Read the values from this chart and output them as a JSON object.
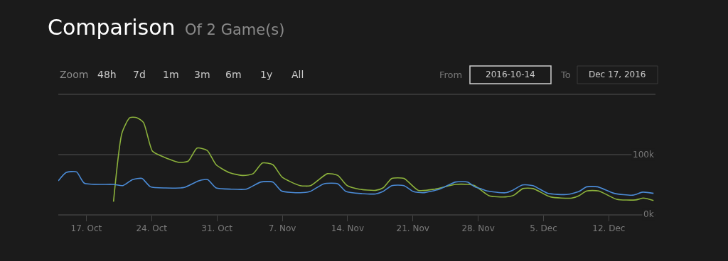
{
  "chart_data": {
    "type": "line",
    "title": "Comparison",
    "subtitle": "Of 2 Game(s)",
    "annotations": [
      "Zoom",
      "48h",
      "7d",
      "1m",
      "3m",
      "6m",
      "1y",
      "All",
      "From",
      "2016-10-14",
      "To",
      "Dec 17, 2016"
    ],
    "xlim": [
      "2016-10-14",
      "2016-12-17"
    ],
    "xticks": [
      {
        "value": "2016-10-17",
        "label": "17. Oct"
      },
      {
        "value": "2016-10-24",
        "label": "24. Oct"
      },
      {
        "value": "2016-10-31",
        "label": "31. Oct"
      },
      {
        "value": "2016-11-07",
        "label": "7. Nov"
      },
      {
        "value": "2016-11-14",
        "label": "14. Nov"
      },
      {
        "value": "2016-11-21",
        "label": "21. Nov"
      },
      {
        "value": "2016-11-28",
        "label": "28. Nov"
      },
      {
        "value": "2016-12-05",
        "label": "5. Dec"
      },
      {
        "value": "2016-12-12",
        "label": "12. Dec"
      }
    ],
    "ylim": [
      0,
      200000
    ],
    "yticks": [
      {
        "value": 0,
        "label": "0k"
      },
      {
        "value": 100000,
        "label": "100k"
      },
      {
        "value": 200000,
        "label": null
      }
    ],
    "grid": "y",
    "marker": "none",
    "line_style": "solid",
    "series": [
      {
        "color": "#8cb23c",
        "x": [
          "2016-10-19T22:00",
          "2016-10-20T20:00",
          "2016-10-21T16:00",
          "2016-10-22T10:00",
          "2016-10-23T03:00",
          "2016-10-24T02:00",
          "2016-10-25T00:00",
          "2016-10-26T22:00",
          "2016-10-27T22:00",
          "2016-10-28T21:00",
          "2016-10-29T23:00",
          "2016-10-30T22:00",
          "2016-11-01T07:00",
          "2016-11-02T20:00",
          "2016-11-03T21:00",
          "2016-11-04T21:00",
          "2016-11-06T00:00",
          "2016-11-07T00:00",
          "2016-11-08T22:00",
          "2016-11-10T01:00",
          "2016-11-11T20:00",
          "2016-11-12T23:00",
          "2016-11-13T23:00",
          "2016-11-15T06:00",
          "2016-11-17T00:00",
          "2016-11-17T19:00",
          "2016-11-18T18:00",
          "2016-11-20T01:00",
          "2016-11-21T14:00",
          "2016-11-23T08:00",
          "2016-11-25T14:00",
          "2016-11-26T21:00",
          "2016-11-27T15:00",
          "2016-11-29T04:00",
          "2016-11-30T22:00",
          "2016-12-01T20:00",
          "2016-12-02T19:00",
          "2016-12-03T21:00",
          "2016-12-05T18:00",
          "2016-12-08T01:00",
          "2016-12-08T19:00",
          "2016-12-09T15:00",
          "2016-12-10T22:00",
          "2016-12-12T20:00",
          "2016-12-14T21:00",
          "2016-12-15T17:00",
          "2016-12-16T19:00"
        ],
        "values": [
          21000,
          137000,
          162000,
          162000,
          154000,
          106000,
          98000,
          87000,
          89000,
          111000,
          107000,
          83000,
          70000,
          65000,
          68000,
          86000,
          83000,
          62000,
          48000,
          48000,
          68000,
          65000,
          48000,
          42000,
          40000,
          44000,
          60000,
          60000,
          40000,
          42000,
          50000,
          50000,
          48000,
          31000,
          29000,
          32000,
          43000,
          43000,
          29000,
          27000,
          31000,
          39000,
          39000,
          25000,
          24000,
          27000,
          23000
        ]
      },
      {
        "color": "#4b8bd6",
        "x": [
          "2016-10-14T00:00",
          "2016-10-14T20:00",
          "2016-10-15T23:00",
          "2016-10-16T19:00",
          "2016-10-19T22:00",
          "2016-10-20T22:00",
          "2016-10-21T23:00",
          "2016-10-22T23:00",
          "2016-10-23T21:00",
          "2016-10-25T11:00",
          "2016-10-27T12:00",
          "2016-10-29T01:00",
          "2016-10-30T00:00",
          "2016-10-30T22:00",
          "2016-11-01T14:00",
          "2016-11-03T03:00",
          "2016-11-04T17:00",
          "2016-11-06T00:00",
          "2016-11-06T22:00",
          "2016-11-08T22:00",
          "2016-11-09T23:00",
          "2016-11-11T11:00",
          "2016-11-12T23:00",
          "2016-11-13T20:00",
          "2016-11-17T00:00",
          "2016-11-17T19:00",
          "2016-11-18T18:00",
          "2016-11-20T01:00",
          "2016-11-21T01:00",
          "2016-11-22T02:00",
          "2016-11-23T20:00",
          "2016-11-25T14:00",
          "2016-11-26T21:00",
          "2016-11-27T15:00",
          "2016-11-28T10:00",
          "2016-11-28T23:00",
          "2016-11-30T22:00",
          "2016-12-01T16:00",
          "2016-12-02T18:00",
          "2016-12-03T21:00",
          "2016-12-05T11:00",
          "2016-12-07T12:00",
          "2016-12-08T19:00",
          "2016-12-09T15:00",
          "2016-12-10T19:00",
          "2016-12-12T14:00",
          "2016-12-14T14:00",
          "2016-12-15T15:00",
          "2016-12-16T19:00"
        ],
        "values": [
          56000,
          70000,
          71000,
          52000,
          50000,
          48000,
          58000,
          60000,
          46000,
          44000,
          45000,
          56000,
          58000,
          44000,
          42000,
          42000,
          54000,
          54000,
          39000,
          36000,
          38000,
          51000,
          51000,
          38000,
          34000,
          38000,
          48000,
          48000,
          38000,
          36000,
          42000,
          54000,
          54000,
          46000,
          42000,
          39000,
          36000,
          40000,
          49000,
          48000,
          35000,
          33000,
          38000,
          46000,
          46000,
          35000,
          32000,
          37000,
          35000
        ]
      }
    ]
  }
}
